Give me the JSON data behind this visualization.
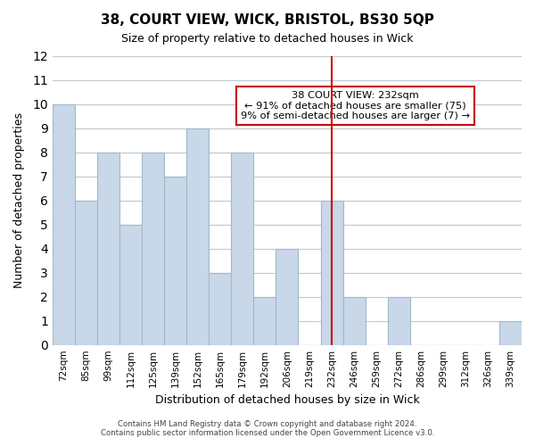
{
  "title": "38, COURT VIEW, WICK, BRISTOL, BS30 5QP",
  "subtitle": "Size of property relative to detached houses in Wick",
  "xlabel": "Distribution of detached houses by size in Wick",
  "ylabel": "Number of detached properties",
  "bar_color": "#c8d8e8",
  "bar_edge_color": "#a0b8cc",
  "categories": [
    "72sqm",
    "85sqm",
    "99sqm",
    "112sqm",
    "125sqm",
    "139sqm",
    "152sqm",
    "165sqm",
    "179sqm",
    "192sqm",
    "206sqm",
    "219sqm",
    "232sqm",
    "246sqm",
    "259sqm",
    "272sqm",
    "286sqm",
    "299sqm",
    "312sqm",
    "326sqm",
    "339sqm"
  ],
  "values": [
    10,
    6,
    8,
    5,
    8,
    7,
    9,
    3,
    8,
    2,
    4,
    0,
    6,
    2,
    0,
    2,
    0,
    0,
    0,
    0,
    1
  ],
  "ylim": [
    0,
    12
  ],
  "yticks": [
    0,
    1,
    2,
    3,
    4,
    5,
    6,
    7,
    8,
    9,
    10,
    11,
    12
  ],
  "vline_x": 12,
  "vline_color": "#cc0000",
  "annotation_title": "38 COURT VIEW: 232sqm",
  "annotation_line1": "← 91% of detached houses are smaller (75)",
  "annotation_line2": "9% of semi-detached houses are larger (7) →",
  "annotation_box_color": "#ffffff",
  "annotation_box_edge": "#cc0000",
  "footer1": "Contains HM Land Registry data © Crown copyright and database right 2024.",
  "footer2": "Contains public sector information licensed under the Open Government Licence v3.0.",
  "background_color": "#ffffff",
  "grid_color": "#c0c8d0"
}
